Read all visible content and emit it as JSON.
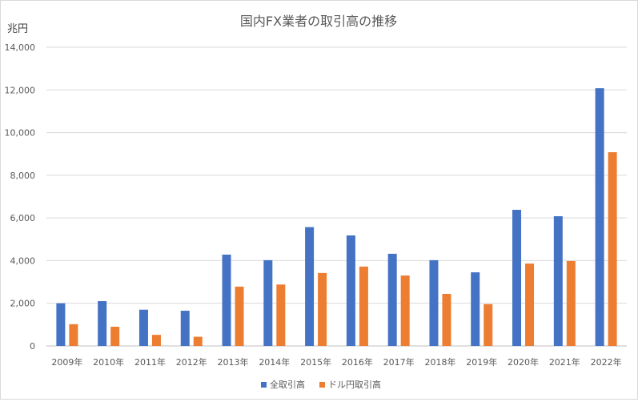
{
  "chart_data": {
    "type": "bar",
    "title": "国内FX業者の取引高の推移",
    "ylabel": "兆円",
    "xlabel": "",
    "ylim": [
      0,
      14000
    ],
    "yticks": [
      "0",
      "2,000",
      "4,000",
      "6,000",
      "8,000",
      "10,000",
      "12,000",
      "14,000"
    ],
    "categories": [
      "2009年",
      "2010年",
      "2011年",
      "2012年",
      "2013年",
      "2014年",
      "2015年",
      "2016年",
      "2017年",
      "2018年",
      "2019年",
      "2020年",
      "2021年",
      "2022年"
    ],
    "series": [
      {
        "name": "全取引高",
        "color": "#4472c4",
        "values": [
          2000,
          2100,
          1700,
          1650,
          4280,
          4020,
          5570,
          5180,
          4320,
          4020,
          3450,
          6380,
          6080,
          12080
        ]
      },
      {
        "name": "ドル円取引高",
        "color": "#ed7d31",
        "values": [
          1020,
          900,
          520,
          430,
          2780,
          2880,
          3420,
          3720,
          3300,
          2440,
          1960,
          3860,
          3980,
          9080
        ]
      }
    ],
    "grid": true,
    "legend_position": "bottom"
  }
}
